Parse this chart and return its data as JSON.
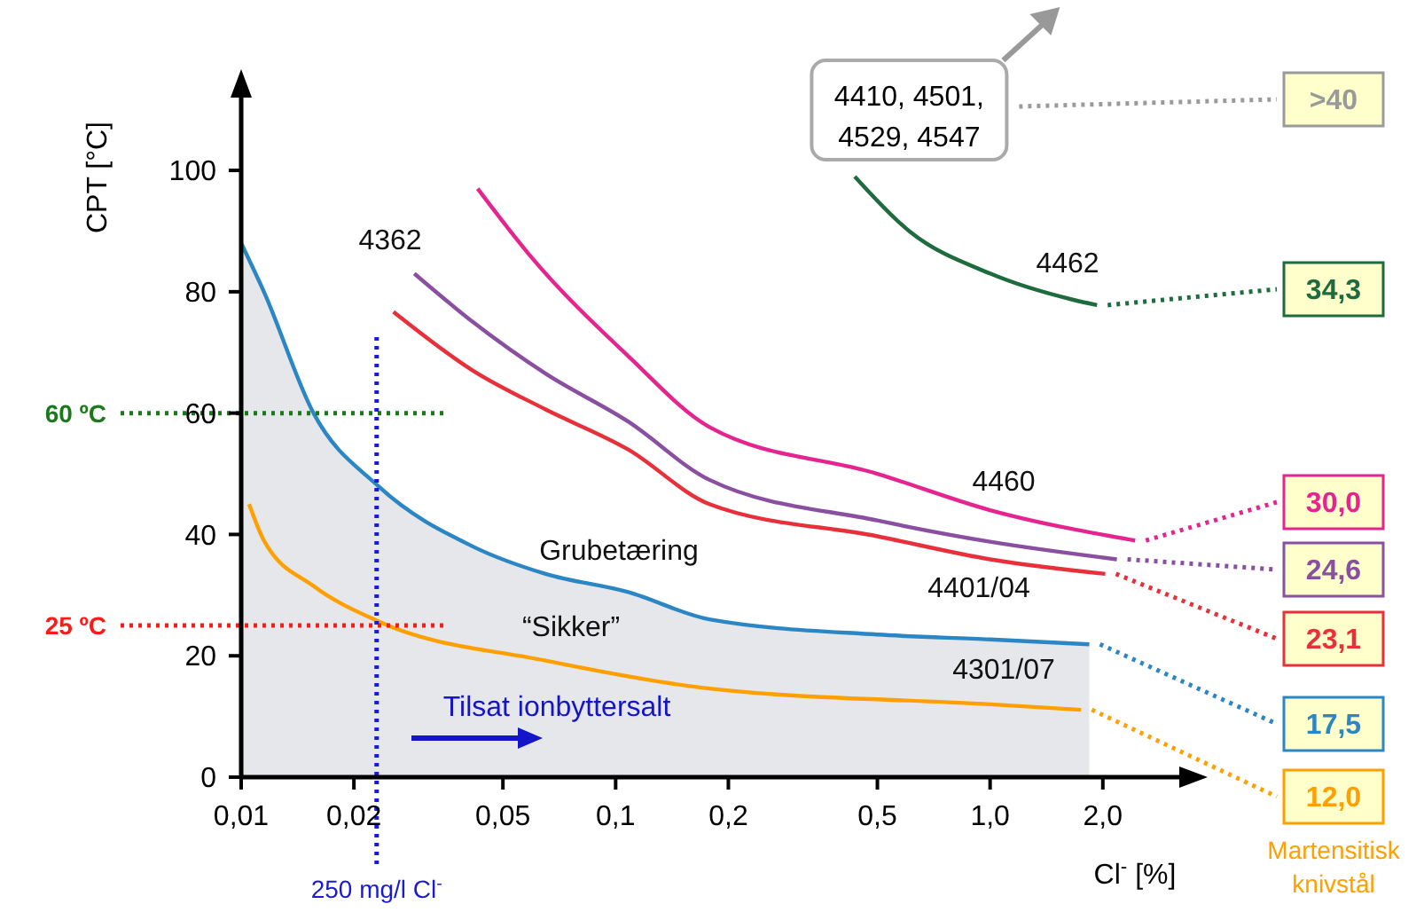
{
  "chart_data": {
    "type": "line",
    "xlabel": "Cl$^{-}$ [%]",
    "ylabel": "CPT [°C]",
    "log": "x",
    "xlim": [
      0.01,
      3.2
    ],
    "ylim": [
      0,
      112
    ],
    "xticks": [
      {
        "value": 0.01,
        "label": "0,01"
      },
      {
        "value": 0.02,
        "label": "0,02"
      },
      {
        "value": 0.05,
        "label": "0,05"
      },
      {
        "value": 0.1,
        "label": "0,1"
      },
      {
        "value": 0.2,
        "label": "0,2"
      },
      {
        "value": 0.5,
        "label": "0,5"
      },
      {
        "value": 1,
        "label": "1,0"
      },
      {
        "value": 2,
        "label": "2,0"
      }
    ],
    "yticks": [
      0,
      20,
      40,
      60,
      80,
      100
    ],
    "grid": false,
    "marker": "none",
    "series": [
      {
        "type": "area",
        "name": "4301/07",
        "color": "#2a86c4",
        "x": [
          0.01,
          0.0115,
          0.0156,
          0.0232,
          0.0416,
          0.065,
          0.108,
          0.178,
          0.5,
          1.0,
          1.84
        ],
        "values": [
          88,
          80,
          60,
          48,
          38,
          33.5,
          30.5,
          26,
          23.5,
          22.7,
          21.9
        ]
      },
      {
        "color": "#ff9f00",
        "x": [
          0.0105,
          0.0115,
          0.0156,
          0.0232,
          0.065,
          0.178,
          1.0,
          1.75
        ],
        "values": [
          45,
          39,
          31.5,
          25.7,
          19.2,
          14.6,
          12,
          11.1
        ]
      },
      {
        "name": "4401/04",
        "color": "#e8303a",
        "x": [
          0.0255,
          0.0416,
          0.065,
          0.108,
          0.178,
          0.5,
          1.0,
          2.03
        ],
        "values": [
          76.7,
          67,
          60.6,
          54,
          45,
          39.7,
          35.9,
          33.5
        ]
      },
      {
        "name": "4362",
        "color": "#8a4fa0",
        "x": [
          0.029,
          0.0416,
          0.065,
          0.108,
          0.178,
          0.5,
          1.0,
          2.18
        ],
        "values": [
          83,
          75,
          66.5,
          58.6,
          49,
          42.3,
          38.8,
          35.9
        ]
      },
      {
        "name": "4460",
        "color": "#e6248f",
        "x": [
          0.0428,
          0.059,
          0.108,
          0.178,
          0.5,
          1.0,
          2.44
        ],
        "values": [
          97,
          86,
          69.4,
          57.7,
          50,
          44,
          39
        ]
      },
      {
        "name": "4462",
        "color": "#1e6b3e",
        "x": [
          0.435,
          0.608,
          1.0,
          1.66,
          1.93
        ],
        "values": [
          99,
          90,
          83,
          78.7,
          77.8
        ]
      }
    ],
    "ref_lines": [
      {
        "axis": "y",
        "value": 60,
        "label": "60 ºC",
        "color": "#1a7a1a",
        "line_style": "dotted"
      },
      {
        "axis": "y",
        "value": 25,
        "label": "25 ºC",
        "color": "#ff1a1a",
        "line_style": "dotted"
      },
      {
        "axis": "x",
        "value": 0.023,
        "label": "250 mg/l Cl$^{-}$",
        "color": "#1a1ad0",
        "line_style": "dotted"
      }
    ],
    "annotations": [
      ">40",
      {
        "text": "34,3",
        "x": 1.93,
        "y": 77.8
      },
      {
        "text": "30,0",
        "x": 2.44,
        "y": 39
      },
      {
        "text": "24,6",
        "x": 2.18,
        "y": 35.9
      },
      {
        "text": "23,1",
        "x": 2.03,
        "y": 33.5
      },
      {
        "text": "17,5",
        "x": 1.84,
        "y": 21.9
      },
      {
        "text": "12,0",
        "x": 1.75,
        "y": 11.1
      },
      "Martensitisk\nknivstål",
      "Grubetæring",
      "“Sikker”",
      "Tilsat ionbyttersalt",
      "4410, 4501,\n4529, 4547"
    ]
  }
}
